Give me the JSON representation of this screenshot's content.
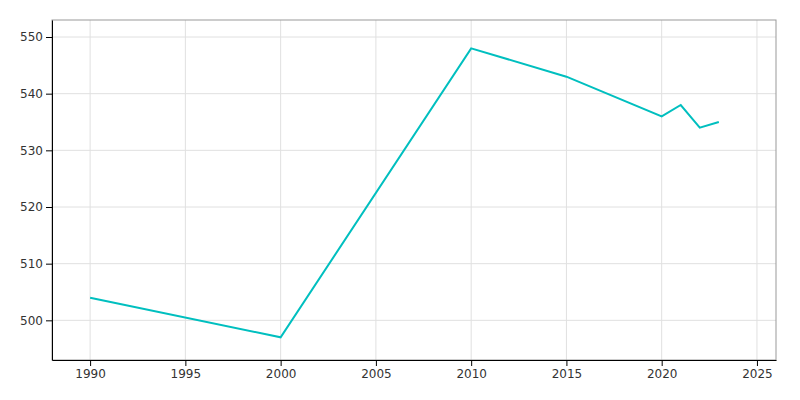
{
  "chart_data": {
    "type": "line",
    "x": [
      1990,
      2000,
      2010,
      2015,
      2020,
      2021,
      2022,
      2023
    ],
    "values": [
      504,
      497,
      548,
      543,
      536,
      538,
      534,
      535
    ],
    "color": "#00BFBF",
    "xlim": [
      1988,
      2026
    ],
    "ylim": [
      493,
      553
    ],
    "xticks": [
      1990,
      1995,
      2000,
      2005,
      2010,
      2015,
      2020,
      2025
    ],
    "yticks": [
      500,
      510,
      520,
      530,
      540,
      550
    ],
    "grid": true
  }
}
